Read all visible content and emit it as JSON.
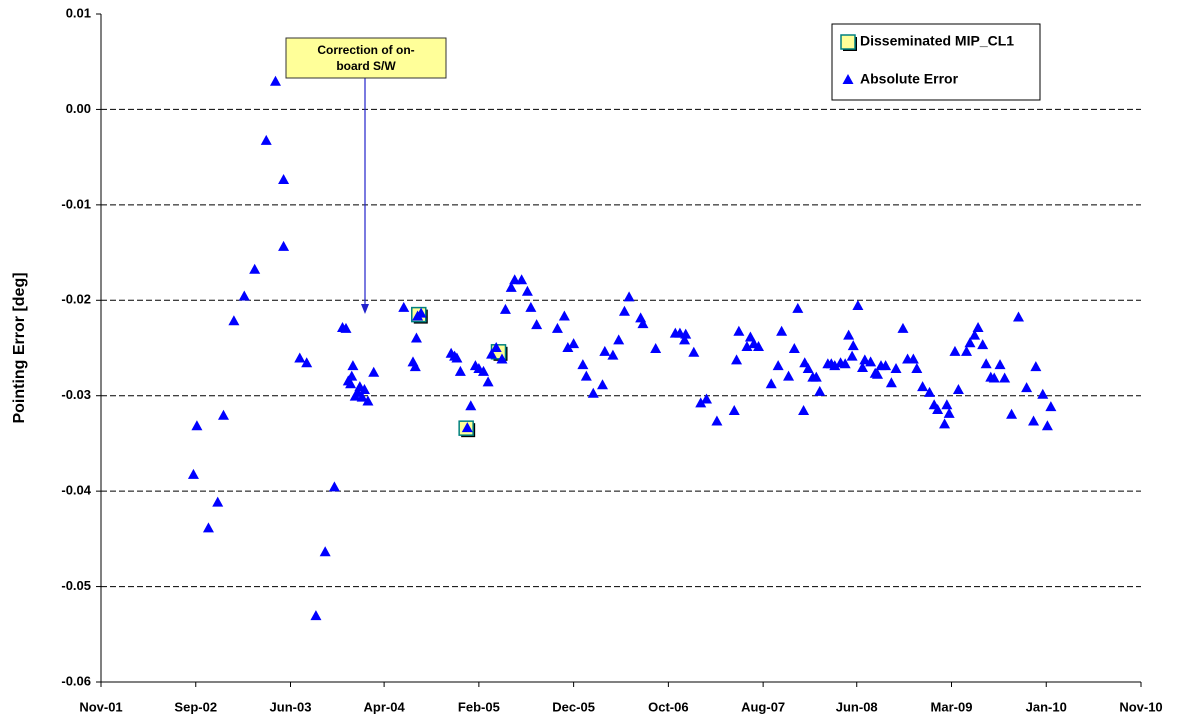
{
  "chart_data": {
    "type": "scatter",
    "y_label": "Pointing Error [deg]",
    "annotation": [
      "Correction of on-",
      "board S/W"
    ],
    "xlim": [
      2001.83,
      2010.83
    ],
    "xticks": [
      {
        "value": 2001.83,
        "label": "Nov-01"
      },
      {
        "value": 2002.65,
        "label": "Sep-02"
      },
      {
        "value": 2003.47,
        "label": "Jun-03"
      },
      {
        "value": 2004.28,
        "label": "Apr-04"
      },
      {
        "value": 2005.1,
        "label": "Feb-05"
      },
      {
        "value": 2005.92,
        "label": "Dec-05"
      },
      {
        "value": 2006.74,
        "label": "Oct-06"
      },
      {
        "value": 2007.56,
        "label": "Aug-07"
      },
      {
        "value": 2008.37,
        "label": "Jun-08"
      },
      {
        "value": 2009.19,
        "label": "Mar-09"
      },
      {
        "value": 2010.01,
        "label": "Jan-10"
      },
      {
        "value": 2010.83,
        "label": "Nov-10"
      }
    ],
    "ylim": [
      -0.06,
      0.01
    ],
    "yticks": [
      0.01,
      {
        "value": 0,
        "label": "0.00"
      },
      -0.01,
      -0.02,
      -0.03,
      -0.04,
      -0.05,
      -0.06
    ],
    "grid": true,
    "legend": "top-right",
    "series": [
      {
        "name": "Disseminated MIP_CL1",
        "color": "#ffff99",
        "marker": "square",
        "x": [
          2004.58,
          2004.99,
          2005.27
        ],
        "values": [
          -0.0215,
          -0.0334,
          -0.0254
        ]
      },
      {
        "name": "Absolute Error",
        "color": "#0000ff",
        "marker": "triangle",
        "x": [
          2002.63,
          2002.66,
          2002.76,
          2002.84,
          2002.89,
          2002.98,
          2003.07,
          2003.16,
          2003.26,
          2003.34,
          2003.41,
          2003.41,
          2003.55,
          2003.61,
          2003.69,
          2003.77,
          2003.85,
          2003.92,
          2003.95,
          2003.97,
          2003.99,
          2004.01,
          2004.0,
          2004.03,
          2004.05,
          2004.07,
          2004.09,
          2004.11,
          2004.14,
          2004.19,
          2004.45,
          2004.53,
          2004.55,
          2004.56,
          2004.57,
          2004.6,
          2004.86,
          2004.89,
          2004.91,
          2004.94,
          2005.0,
          2005.03,
          2005.07,
          2005.1,
          2005.14,
          2005.18,
          2005.21,
          2005.25,
          2005.3,
          2005.33,
          2005.38,
          2005.41,
          2005.47,
          2005.52,
          2005.55,
          2005.6,
          2005.78,
          2005.84,
          2005.87,
          2005.92,
          2006.0,
          2006.03,
          2006.09,
          2006.17,
          2006.19,
          2006.26,
          2006.31,
          2006.36,
          2006.4,
          2006.5,
          2006.52,
          2006.63,
          2006.8,
          2006.84,
          2006.88,
          2006.89,
          2006.96,
          2007.02,
          2007.07,
          2007.16,
          2007.31,
          2007.33,
          2007.35,
          2007.42,
          2007.45,
          2007.48,
          2007.52,
          2007.63,
          2007.69,
          2007.72,
          2007.78,
          2007.83,
          2007.86,
          2007.91,
          2007.92,
          2007.95,
          2007.99,
          2008.02,
          2008.05,
          2008.12,
          2008.15,
          2008.18,
          2008.23,
          2008.27,
          2008.3,
          2008.33,
          2008.34,
          2008.38,
          2008.42,
          2008.44,
          2008.49,
          2008.53,
          2008.55,
          2008.58,
          2008.62,
          2008.67,
          2008.71,
          2008.77,
          2008.81,
          2008.86,
          2008.89,
          2008.94,
          2009.0,
          2009.04,
          2009.07,
          2009.13,
          2009.15,
          2009.17,
          2009.22,
          2009.25,
          2009.32,
          2009.35,
          2009.39,
          2009.42,
          2009.46,
          2009.49,
          2009.53,
          2009.56,
          2009.61,
          2009.65,
          2009.71,
          2009.77,
          2009.84,
          2009.9,
          2009.92,
          2009.98,
          2010.02,
          2010.05
        ],
        "values": [
          -0.0383,
          -0.0332,
          -0.0439,
          -0.0412,
          -0.0321,
          -0.0222,
          -0.0196,
          -0.0168,
          -0.0033,
          0.0029,
          -0.0074,
          -0.0144,
          -0.0261,
          -0.0266,
          -0.0531,
          -0.0464,
          -0.0396,
          -0.0229,
          -0.023,
          -0.0285,
          -0.0288,
          -0.0269,
          -0.028,
          -0.0301,
          -0.0297,
          -0.0291,
          -0.0302,
          -0.0294,
          -0.0306,
          -0.0276,
          -0.0208,
          -0.0265,
          -0.027,
          -0.024,
          -0.0217,
          -0.0214,
          -0.0256,
          -0.0259,
          -0.0261,
          -0.0275,
          -0.0334,
          -0.0311,
          -0.0269,
          -0.0272,
          -0.0275,
          -0.0286,
          -0.0257,
          -0.025,
          -0.0262,
          -0.021,
          -0.0187,
          -0.0179,
          -0.0179,
          -0.0191,
          -0.0208,
          -0.0226,
          -0.023,
          -0.0217,
          -0.025,
          -0.0246,
          -0.0268,
          -0.028,
          -0.0298,
          -0.0289,
          -0.0254,
          -0.0258,
          -0.0242,
          -0.0212,
          -0.0197,
          -0.0219,
          -0.0225,
          -0.0251,
          -0.0235,
          -0.0235,
          -0.0242,
          -0.0236,
          -0.0255,
          -0.0308,
          -0.0304,
          -0.0327,
          -0.0316,
          -0.0263,
          -0.0233,
          -0.0249,
          -0.0239,
          -0.0246,
          -0.0249,
          -0.0288,
          -0.0269,
          -0.0233,
          -0.028,
          -0.0251,
          -0.0209,
          -0.0316,
          -0.0266,
          -0.0272,
          -0.0281,
          -0.0281,
          -0.0296,
          -0.0267,
          -0.0267,
          -0.0269,
          -0.0266,
          -0.0267,
          -0.0237,
          -0.0259,
          -0.0248,
          -0.0206,
          -0.0271,
          -0.0263,
          -0.0265,
          -0.0277,
          -0.0278,
          -0.0269,
          -0.0269,
          -0.0287,
          -0.0272,
          -0.023,
          -0.0262,
          -0.0262,
          -0.0272,
          -0.0291,
          -0.0297,
          -0.031,
          -0.0315,
          -0.033,
          -0.031,
          -0.0319,
          -0.0254,
          -0.0294,
          -0.0254,
          -0.0245,
          -0.0237,
          -0.0229,
          -0.0247,
          -0.0267,
          -0.0281,
          -0.0282,
          -0.0268,
          -0.0282,
          -0.032,
          -0.0218,
          -0.0292,
          -0.0327,
          -0.027,
          -0.0299,
          -0.0332,
          -0.0312
        ]
      }
    ]
  }
}
